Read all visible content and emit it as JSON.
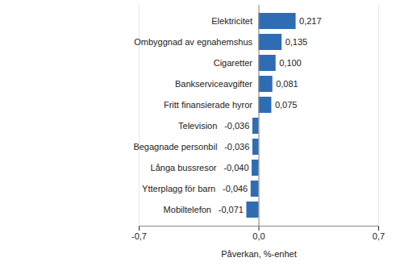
{
  "chart_data": {
    "type": "bar",
    "orientation": "horizontal",
    "categories": [
      "Elektricitet",
      "Ombyggnad av egnahemshus",
      "Cigaretter",
      "Bankserviceavgifter",
      "Fritt finansierade hyror",
      "Television",
      "Begagnade personbil",
      "Långa bussresor",
      "Ytterplagg för barn",
      "Mobiltelefon"
    ],
    "values": [
      0.217,
      0.135,
      0.1,
      0.081,
      0.075,
      -0.036,
      -0.036,
      -0.04,
      -0.046,
      -0.071
    ],
    "value_labels": [
      "0,217",
      "0,135",
      "0,100",
      "0,081",
      "0,075",
      "-0,036",
      "-0,036",
      "-0,040",
      "-0,046",
      "-0,071"
    ],
    "data_labels": true,
    "color": "#2e6db4",
    "xlabel": "Påverkan, %-enhet",
    "xlim": [
      -0.7,
      0.7
    ],
    "xticks": [
      {
        "value": -0.7,
        "label": "-0,7"
      },
      {
        "value": 0,
        "label": "0,0"
      },
      {
        "value": 0.7,
        "label": "0,7"
      }
    ],
    "grid": true,
    "tick_labels": "x"
  }
}
